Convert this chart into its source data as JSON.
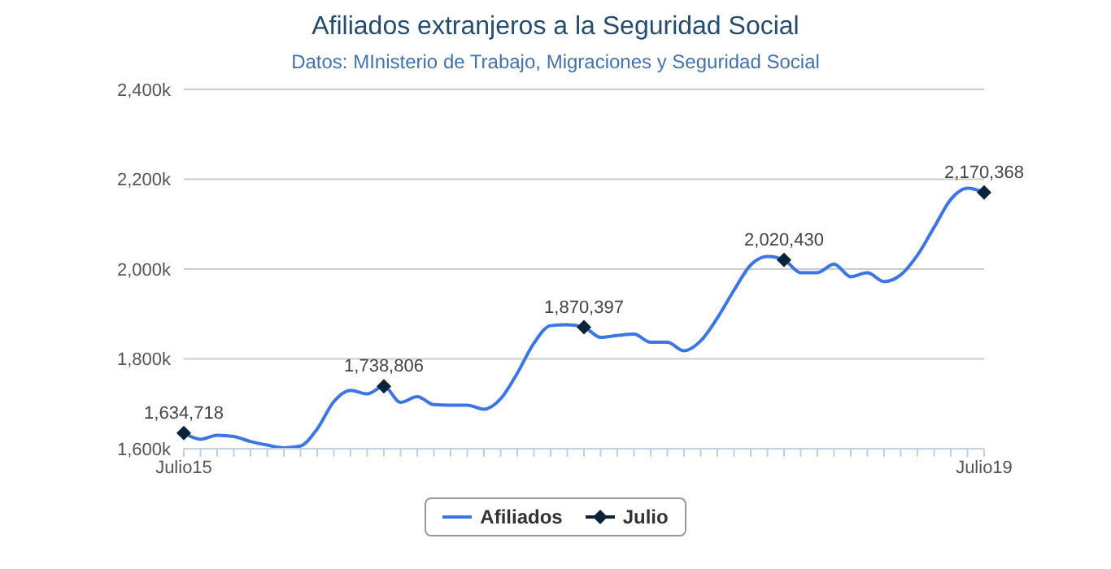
{
  "chart_data": {
    "type": "line",
    "title": "Afiliados extranjeros a la Seguridad Social",
    "subtitle": "Datos: MInisterio de Trabajo, Migraciones y Seguridad Social",
    "categories": [
      "Julio15",
      null,
      null,
      null,
      null,
      null,
      null,
      null,
      null,
      null,
      null,
      null,
      null,
      null,
      null,
      null,
      null,
      null,
      null,
      null,
      null,
      null,
      null,
      null,
      null,
      null,
      null,
      null,
      null,
      null,
      null,
      null,
      null,
      null,
      null,
      null,
      null,
      null,
      null,
      null,
      null,
      null,
      null,
      null,
      null,
      null,
      null,
      null,
      "Julio19"
    ],
    "series": [
      {
        "name": "Afiliados",
        "color": "#3b76e3",
        "marker": "none",
        "values": [
          1634718,
          1621000,
          1630000,
          1627000,
          1616000,
          1608000,
          1602000,
          1606000,
          1644000,
          1705000,
          1730000,
          1722000,
          1738806,
          1703000,
          1716000,
          1698000,
          1697000,
          1697000,
          1688000,
          1711000,
          1768000,
          1835000,
          1874000,
          1876000,
          1870397,
          1848000,
          1852000,
          1855000,
          1837000,
          1837000,
          1818000,
          1840000,
          1891000,
          1953000,
          2009000,
          2028000,
          2020430,
          1992000,
          1992000,
          2011000,
          1983000,
          1992000,
          1972000,
          1987000,
          2031000,
          2093000,
          2155000,
          2180000,
          2170368
        ]
      },
      {
        "name": "Julio",
        "type": "scatter",
        "color": "#0d233a",
        "marker": "diamond",
        "values": [
          1634718,
          null,
          null,
          null,
          null,
          null,
          null,
          null,
          null,
          null,
          null,
          null,
          1738806,
          null,
          null,
          null,
          null,
          null,
          null,
          null,
          null,
          null,
          null,
          null,
          1870397,
          null,
          null,
          null,
          null,
          null,
          null,
          null,
          null,
          null,
          null,
          null,
          2020430,
          null,
          null,
          null,
          null,
          null,
          null,
          null,
          null,
          null,
          null,
          null,
          2170368
        ],
        "value_labels": [
          "1,634,718",
          null,
          null,
          null,
          null,
          null,
          null,
          null,
          null,
          null,
          null,
          null,
          "1,738,806",
          null,
          null,
          null,
          null,
          null,
          null,
          null,
          null,
          null,
          null,
          null,
          "1,870,397",
          null,
          null,
          null,
          null,
          null,
          null,
          null,
          null,
          null,
          null,
          null,
          "2,020,430",
          null,
          null,
          null,
          null,
          null,
          null,
          null,
          null,
          null,
          null,
          null,
          "2,170,368"
        ]
      }
    ],
    "ylim": [
      1600000,
      2400000
    ],
    "yticks": [
      {
        "value": 1600000,
        "label": "1,600k"
      },
      {
        "value": 1800000,
        "label": "1,800k"
      },
      {
        "value": 2000000,
        "label": "2,000k"
      },
      {
        "value": 2200000,
        "label": "2,200k"
      },
      {
        "value": 2400000,
        "label": "2,400k"
      }
    ],
    "grid": "y",
    "legend": "bottom"
  }
}
